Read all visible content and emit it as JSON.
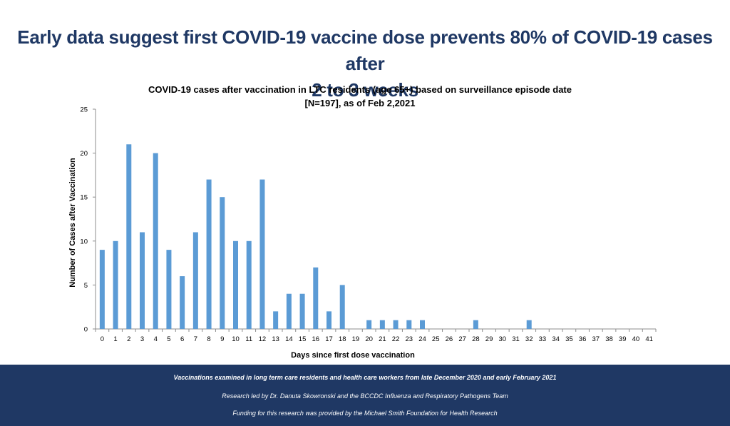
{
  "slide": {
    "headline_line1": "Early data suggest first COVID-19 vaccine dose prevents 80% of COVID-19 cases after",
    "headline_line2": "2 to 3 weeks"
  },
  "footer": {
    "line1": "Vaccinations examined in long term care residents and health care workers from late December 2020 and early February 2021",
    "line2": "Research led by Dr. Danuta Skowronski and the BCCDC Influenza and Respiratory Pathogens Team",
    "line3": "Funding for this research was provided by the Michael Smith Foundation for Health Research"
  },
  "colors": {
    "bar": "#5b9bd5",
    "headline": "#1f3864",
    "footer_bg": "#1f3864"
  },
  "chart_data": {
    "type": "bar",
    "title_line1": "COVID-19 cases after vaccination in LTC residents (age 65+) based on surveillance episode date",
    "title_line2": "[N=197], as of Feb 2,2021",
    "xlabel": "Days since first dose vaccination",
    "ylabel": "Number of Cases after Vaccination",
    "ylim": [
      0,
      25
    ],
    "yticks": [
      0,
      5,
      10,
      15,
      20,
      25
    ],
    "grid": false,
    "categories": [
      "0",
      "1",
      "2",
      "3",
      "4",
      "5",
      "6",
      "7",
      "8",
      "9",
      "10",
      "11",
      "12",
      "13",
      "14",
      "15",
      "16",
      "17",
      "18",
      "19",
      "20",
      "21",
      "22",
      "23",
      "24",
      "25",
      "26",
      "27",
      "28",
      "29",
      "30",
      "31",
      "32",
      "33",
      "34",
      "35",
      "36",
      "37",
      "38",
      "39",
      "40",
      "41"
    ],
    "values": [
      9,
      10,
      21,
      11,
      20,
      9,
      6,
      11,
      17,
      15,
      10,
      10,
      17,
      2,
      4,
      4,
      7,
      2,
      5,
      0,
      1,
      1,
      1,
      1,
      1,
      0,
      0,
      0,
      1,
      0,
      0,
      0,
      1,
      0,
      0,
      0,
      0,
      0,
      0,
      0,
      0,
      0
    ]
  }
}
